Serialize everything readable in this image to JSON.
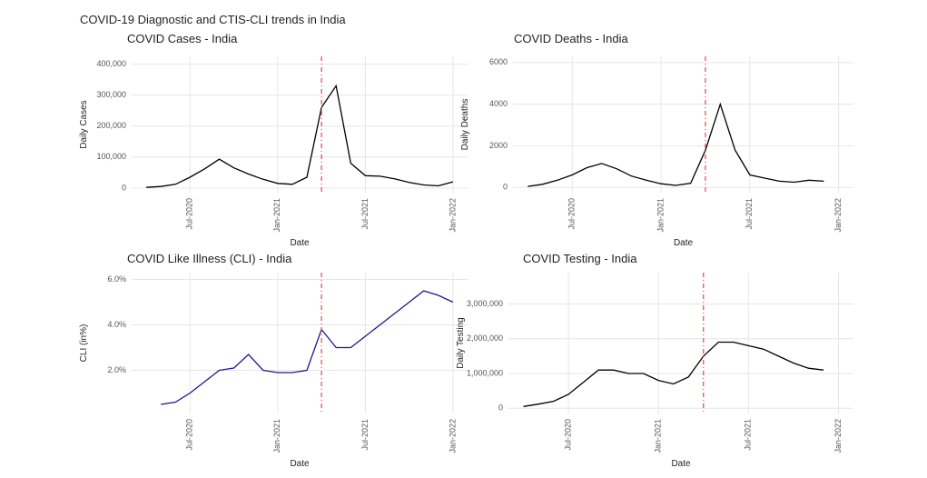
{
  "title": "COVID-19 Diagnostic and CTIS-CLI trends in India",
  "chart_data": [
    {
      "type": "line",
      "title": "COVID Cases - India",
      "x_label": "Date",
      "y_label": "Daily Cases",
      "x": [
        "Apr-2020",
        "May-2020",
        "Jun-2020",
        "Jul-2020",
        "Aug-2020",
        "Sep-2020",
        "Oct-2020",
        "Nov-2020",
        "Dec-2020",
        "Jan-2021",
        "Feb-2021",
        "Mar-2021",
        "Apr-2021",
        "May-2021",
        "Jun-2021",
        "Jul-2021",
        "Aug-2021",
        "Sep-2021",
        "Oct-2021",
        "Nov-2021",
        "Dec-2021",
        "Jan-2022"
      ],
      "series": [
        {
          "color": "#000000",
          "values": [
            2000,
            5000,
            12000,
            35000,
            62000,
            93000,
            65000,
            45000,
            28000,
            15000,
            12000,
            35000,
            260000,
            330000,
            80000,
            40000,
            38000,
            30000,
            18000,
            10000,
            7000,
            20000
          ]
        }
      ],
      "xlim": [
        "Mar-2020",
        "Feb-2022"
      ],
      "xticks": [
        "Jul-2020",
        "Jan-2021",
        "Jul-2021",
        "Jan-2022"
      ],
      "ylim": [
        -15000,
        425000
      ],
      "yticks": [
        0,
        {
          "value": 100000,
          "label": "100,000"
        },
        {
          "value": 200000,
          "label": "200,000"
        },
        {
          "value": 300000,
          "label": "300,000"
        },
        {
          "value": 400000,
          "label": "400,000"
        }
      ],
      "vline": "Apr-2021",
      "vline_color": "#e8423c",
      "grid": true
    },
    {
      "type": "line",
      "title": "COVID Deaths - India",
      "x_label": "Date",
      "y_label": "Daily Deaths",
      "x": [
        "Apr-2020",
        "May-2020",
        "Jun-2020",
        "Jul-2020",
        "Aug-2020",
        "Sep-2020",
        "Oct-2020",
        "Nov-2020",
        "Dec-2020",
        "Jan-2021",
        "Feb-2021",
        "Mar-2021",
        "Apr-2021",
        "May-2021",
        "Jun-2021",
        "Jul-2021",
        "Aug-2021",
        "Sep-2021",
        "Oct-2021",
        "Nov-2021",
        "Dec-2021"
      ],
      "series": [
        {
          "color": "#000000",
          "values": [
            50,
            150,
            350,
            600,
            950,
            1150,
            900,
            550,
            350,
            180,
            100,
            200,
            1800,
            4000,
            1800,
            600,
            450,
            300,
            250,
            350,
            300
          ]
        }
      ],
      "xlim": [
        "Mar-2020",
        "Feb-2022"
      ],
      "xticks": [
        "Jul-2020",
        "Jan-2021",
        "Jul-2021",
        "Jan-2022"
      ],
      "ylim": [
        -250,
        6300
      ],
      "yticks": [
        0,
        2000,
        4000,
        6000
      ],
      "vline": "Apr-2021",
      "vline_color": "#e8423c",
      "grid": true
    },
    {
      "type": "line",
      "title": "COVID Like Illness (CLI) - India",
      "x_label": "Date",
      "y_label": "CLI (in%)",
      "x": [
        "May-2020",
        "Jun-2020",
        "Jul-2020",
        "Aug-2020",
        "Sep-2020",
        "Oct-2020",
        "Nov-2020",
        "Dec-2020",
        "Jan-2021",
        "Feb-2021",
        "Mar-2021",
        "Apr-2021",
        "May-2021",
        "Jun-2021",
        "Jul-2021",
        "Aug-2021",
        "Sep-2021",
        "Oct-2021",
        "Nov-2021",
        "Dec-2021",
        "Jan-2022"
      ],
      "series": [
        {
          "color": "#1a1a8c",
          "values": [
            0.5,
            0.6,
            1.0,
            1.5,
            2.0,
            2.1,
            2.7,
            2.0,
            1.9,
            1.9,
            2.0,
            3.8,
            3.0,
            3.0,
            3.5,
            4.0,
            4.5,
            5.0,
            5.5,
            5.3,
            5.0
          ]
        }
      ],
      "xlim": [
        "Mar-2020",
        "Feb-2022"
      ],
      "xticks": [
        "Jul-2020",
        "Jan-2021",
        "Jul-2021",
        "Jan-2022"
      ],
      "ylim": [
        0.1,
        6.3
      ],
      "yticks": [
        {
          "value": 2,
          "label": "2.0%"
        },
        {
          "value": 4,
          "label": "4.0%"
        },
        {
          "value": 6,
          "label": "6.0%"
        }
      ],
      "vline": "Apr-2021",
      "vline_color": "#e8423c",
      "grid": true
    },
    {
      "type": "line",
      "title": "COVID Testing - India",
      "x_label": "Date",
      "y_label": "Daily Testing",
      "x": [
        "Apr-2020",
        "May-2020",
        "Jun-2020",
        "Jul-2020",
        "Aug-2020",
        "Sep-2020",
        "Oct-2020",
        "Nov-2020",
        "Dec-2020",
        "Jan-2021",
        "Feb-2021",
        "Mar-2021",
        "Apr-2021",
        "May-2021",
        "Jun-2021",
        "Jul-2021",
        "Aug-2021",
        "Sep-2021",
        "Oct-2021",
        "Nov-2021",
        "Dec-2021"
      ],
      "series": [
        {
          "color": "#000000",
          "values": [
            50000,
            120000,
            200000,
            400000,
            750000,
            1100000,
            1100000,
            1000000,
            1000000,
            800000,
            700000,
            900000,
            1500000,
            1900000,
            1900000,
            1800000,
            1700000,
            1500000,
            1300000,
            1150000,
            1100000
          ]
        }
      ],
      "xlim": [
        "Mar-2020",
        "Feb-2022"
      ],
      "xticks": [
        "Jul-2020",
        "Jan-2021",
        "Jul-2021",
        "Jan-2022"
      ],
      "ylim": [
        -150000,
        3900000
      ],
      "yticks": [
        0,
        {
          "value": 1000000,
          "label": "1,000,000"
        },
        {
          "value": 2000000,
          "label": "2,000,000"
        },
        {
          "value": 3000000,
          "label": "3,000,000"
        }
      ],
      "vline": "Apr-2021",
      "vline_color": "#e8423c",
      "grid": true
    }
  ]
}
